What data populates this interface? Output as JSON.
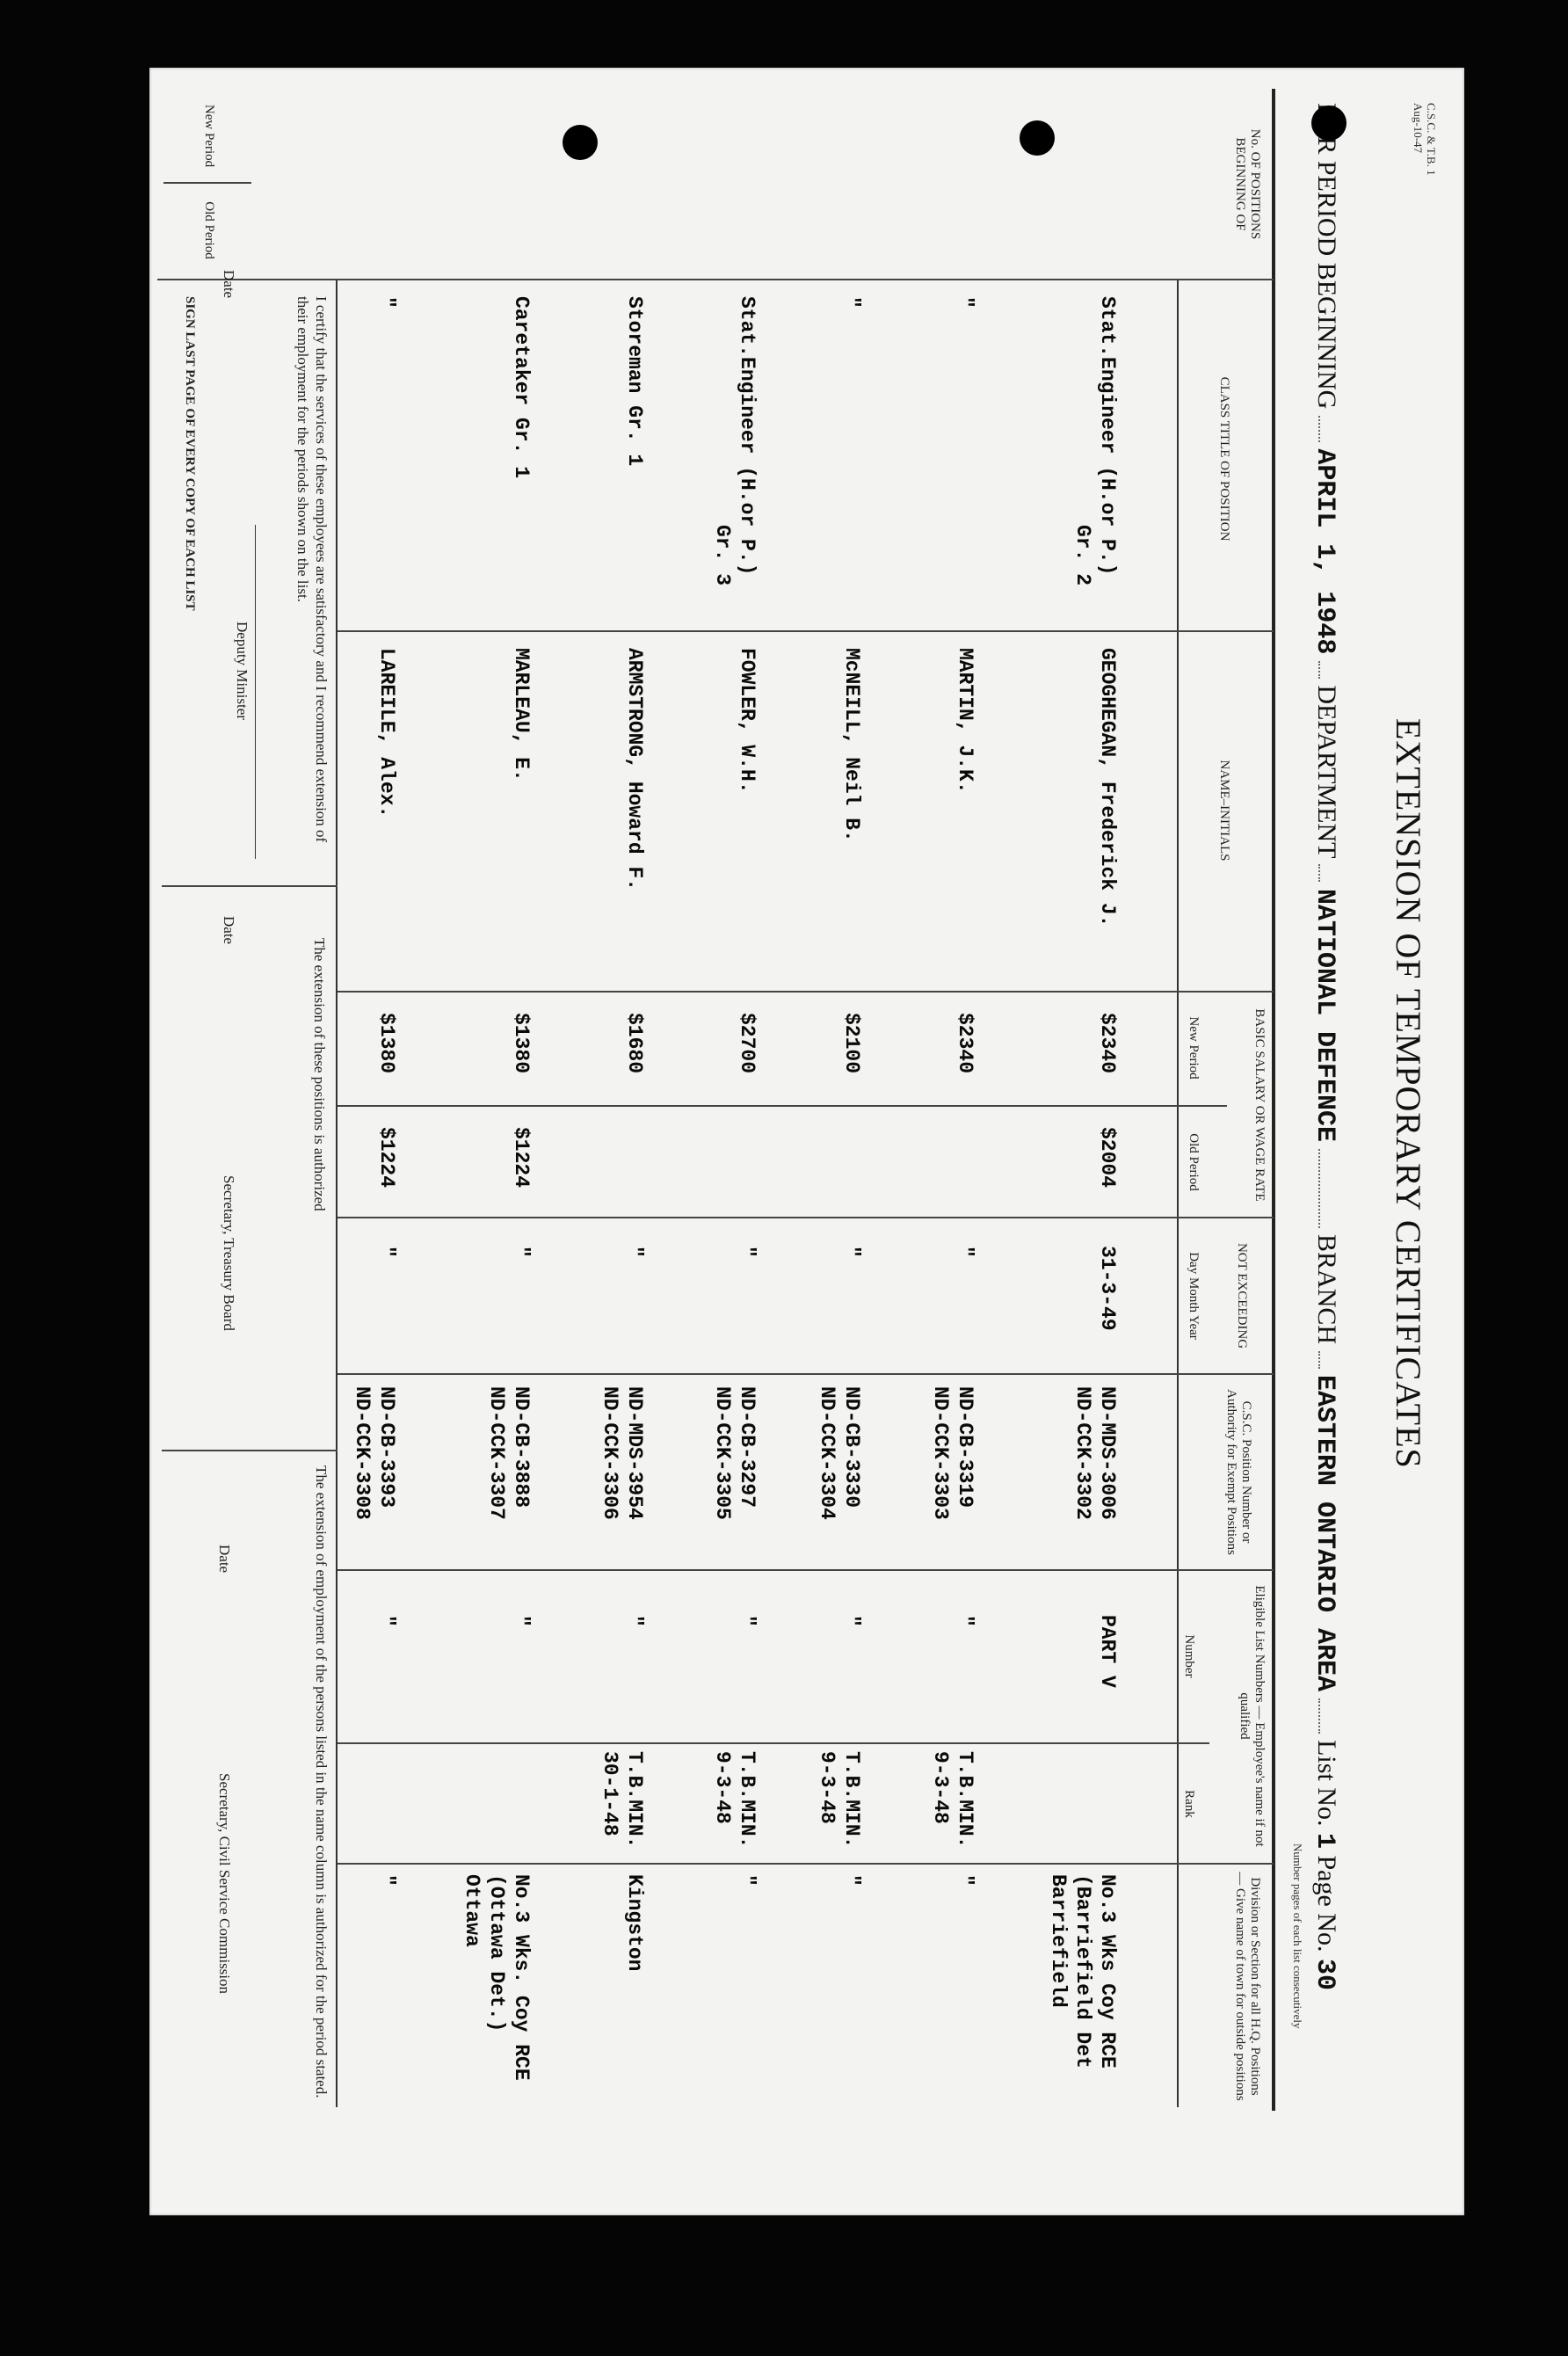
{
  "form": {
    "number": "C.S.C. & T.B. 1",
    "revision": "Aug-10-47"
  },
  "title": "EXTENSION OF TEMPORARY CERTIFICATES",
  "header": {
    "period_label": "FOR PERIOD BEGINNING",
    "period_value": "APRIL 1, 1948",
    "department_label": "DEPARTMENT",
    "department_value": "NATIONAL DEFENCE",
    "branch_label": "BRANCH",
    "branch_value": "EASTERN ONTARIO AREA",
    "list_label": "List No.",
    "list_value": "1",
    "page_label": "Page No.",
    "page_value": "30",
    "page_note": "Number pages of each list consecutively"
  },
  "columns": {
    "positions": "No. OF POSITIONS BEGINNING OF",
    "positions_new": "New Period",
    "positions_old": "Old Period",
    "class_title": "CLASS TITLE OF POSITION",
    "name": "NAME–INITIALS",
    "salary": "BASIC SALARY OR WAGE RATE",
    "salary_new": "New Period",
    "salary_old": "Old Period",
    "not_exceeding": "NOT EXCEEDING",
    "not_exceeding_sub": "Day  Month  Year",
    "csc": "C.S.C. Position Number or Authority for Exempt Positions",
    "eligible": "Eligible List Numbers — Employee's name if not qualified",
    "eligible_number": "Number",
    "eligible_rank": "Rank",
    "division": "Division or Section for all H.Q. Positions — Give name of town for outside positions"
  },
  "rows": [
    {
      "class_title": "Stat.Engineer (H.or P.)",
      "class_title2": "Gr. 2",
      "name": "GEOGHEGAN, Frederick J.",
      "salary_new": "$2340",
      "salary_old": "$2004",
      "not_exceeding": "31-3-49",
      "csc1": "ND-MDS-3006",
      "csc2": "ND-CCK-3302",
      "eligible_number": "PART V",
      "eligible_rank": "",
      "division": "No.3 Wks Coy RCE",
      "division2": "(Barriefield Det",
      "division3": "Barriefield"
    },
    {
      "class_title": "\"",
      "class_title2": "",
      "name": "MARTIN, J.K.",
      "salary_new": "$2340",
      "salary_old": "",
      "not_exceeding": "\"",
      "csc1": "ND-CB-3319",
      "csc2": "ND-CCK-3303",
      "eligible_number": "\"",
      "eligible_rank": "T.B.MIN.",
      "eligible_rank2": "9-3-48",
      "division": "\"",
      "division2": "",
      "division3": ""
    },
    {
      "class_title": "\"",
      "class_title2": "",
      "name": "McNEILL, Neil B.",
      "salary_new": "$2100",
      "salary_old": "",
      "not_exceeding": "\"",
      "csc1": "ND-CB-3330",
      "csc2": "ND-CCK-3304",
      "eligible_number": "\"",
      "eligible_rank": "T.B.MIN.",
      "eligible_rank2": "9-3-48",
      "division": "\"",
      "division2": "",
      "division3": ""
    },
    {
      "class_title": "Stat.Engineer (H.or P.)",
      "class_title2": "Gr. 3",
      "name": "FOWLER, W.H.",
      "salary_new": "$2700",
      "salary_old": "",
      "not_exceeding": "\"",
      "csc1": "ND-CB-3297",
      "csc2": "ND-CCK-3305",
      "eligible_number": "\"",
      "eligible_rank": "T.B.MIN.",
      "eligible_rank2": "9-3-48",
      "division": "\"",
      "division2": "",
      "division3": ""
    },
    {
      "class_title": "Storeman Gr. 1",
      "class_title2": "",
      "name": "ARMSTRONG, Howard F.",
      "salary_new": "$1680",
      "salary_old": "",
      "not_exceeding": "\"",
      "csc1": "ND-MDS-3954",
      "csc2": "ND-CCK-3306",
      "eligible_number": "\"",
      "eligible_rank": "T.B.MIN.",
      "eligible_rank2": "30-1-48",
      "division": "Kingston",
      "division2": "",
      "division3": ""
    },
    {
      "class_title": "Caretaker Gr. 1",
      "class_title2": "",
      "name": "MARLEAU, E.",
      "salary_new": "$1380",
      "salary_old": "$1224",
      "not_exceeding": "\"",
      "csc1": "ND-CB-3888",
      "csc2": "ND-CCK-3307",
      "eligible_number": "\"",
      "eligible_rank": "",
      "eligible_rank2": "",
      "division": "No.3 Wks. Coy RCE",
      "division2": "(Ottawa Det.)",
      "division3": "Ottawa"
    },
    {
      "class_title": "\"",
      "class_title2": "",
      "name": "LAREILE, Alex.",
      "salary_new": "$1380",
      "salary_old": "$1224",
      "not_exceeding": "\"",
      "csc1": "ND-CB-3393",
      "csc2": "ND-CCK-3308",
      "eligible_number": "\"",
      "eligible_rank": "",
      "eligible_rank2": "",
      "division": "\"",
      "division2": "",
      "division3": ""
    }
  ],
  "footer": {
    "certify": "I certify that the services of these employees are satisfactory and I recommend extension of their employment for the periods shown on the list.",
    "date1": "Date",
    "deputy": "Deputy Minister",
    "sign_note": "SIGN LAST PAGE OF EVERY COPY OF EACH LIST",
    "tb_authorized": "The extension of these positions is authorized",
    "date2": "Date",
    "tb_secretary": "Secretary, Treasury Board",
    "csc_authorized": "The extension of employment of the persons listed in the name column is authorized for the period stated.",
    "date3": "Date",
    "csc_secretary": "Secretary, Civil Service Commission"
  }
}
